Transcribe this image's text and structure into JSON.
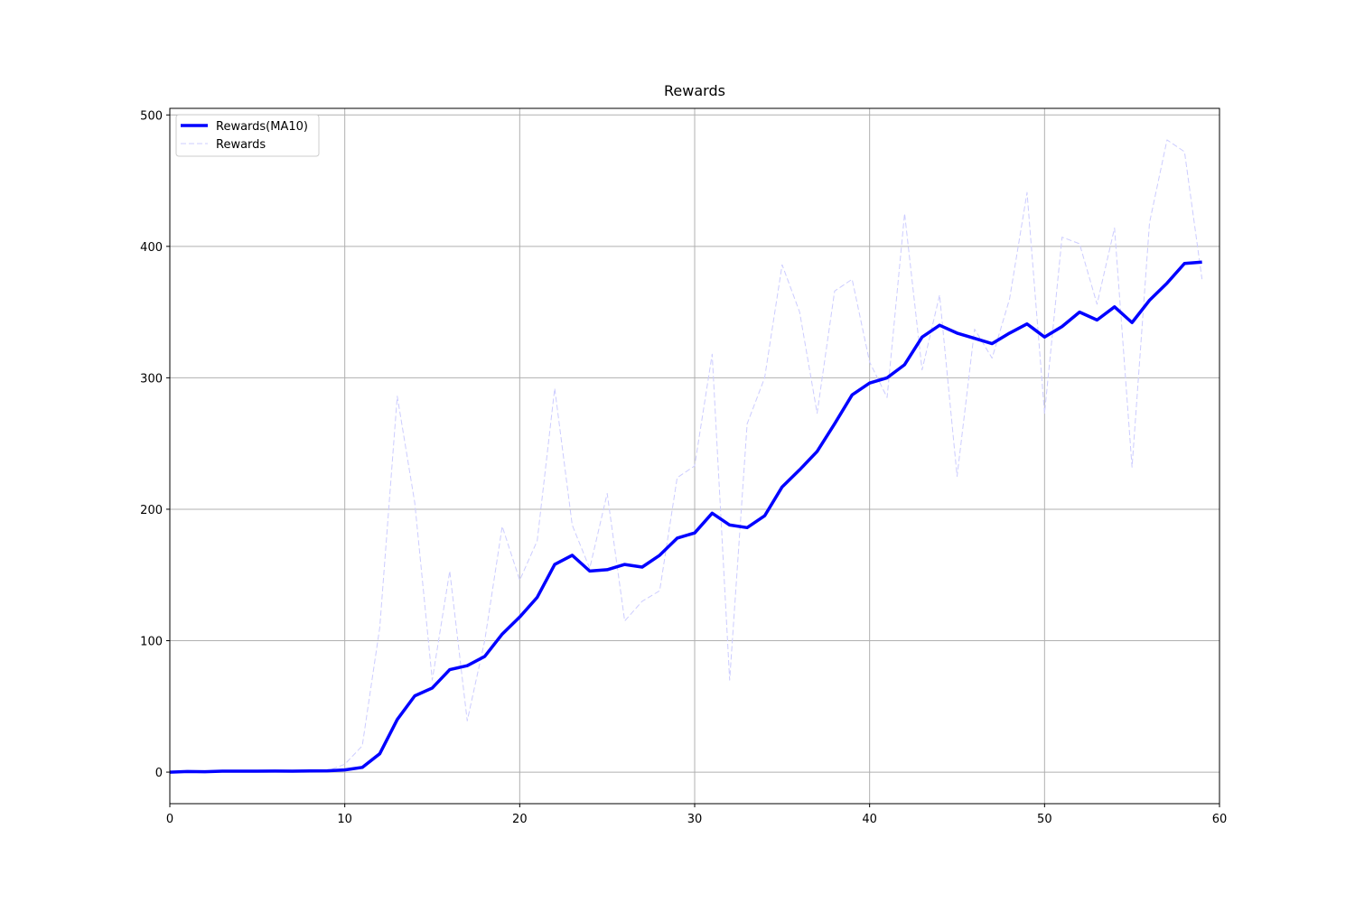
{
  "chart_data": {
    "type": "line",
    "title": "Rewards",
    "x": [
      0,
      1,
      2,
      3,
      4,
      5,
      6,
      7,
      8,
      9,
      10,
      11,
      12,
      13,
      14,
      15,
      16,
      17,
      18,
      19,
      20,
      21,
      22,
      23,
      24,
      25,
      26,
      27,
      28,
      29,
      30,
      31,
      32,
      33,
      34,
      35,
      36,
      37,
      38,
      39,
      40,
      41,
      42,
      43,
      44,
      45,
      46,
      47,
      48,
      49,
      50,
      51,
      52,
      53,
      54,
      55,
      56,
      57,
      58,
      59
    ],
    "series": [
      {
        "name": "Rewards(MA10)",
        "color": "#0000ff",
        "style": "solid",
        "width": 3.5,
        "values": [
          0,
          0.5,
          0.3,
          0.7,
          0.7,
          0.7,
          0.8,
          0.7,
          0.9,
          1,
          1.7,
          3.6,
          14,
          40,
          58,
          64,
          78,
          81,
          88,
          105,
          118,
          133,
          158,
          165,
          153,
          154,
          158,
          156,
          165,
          178,
          182,
          197,
          188,
          186,
          195,
          217,
          230,
          244,
          265,
          287,
          296,
          300,
          310,
          331,
          340,
          334,
          330,
          326,
          334,
          341,
          331,
          339,
          350,
          344,
          354,
          342,
          359,
          372,
          387,
          388
        ]
      },
      {
        "name": "Rewards",
        "color": "#ccccff",
        "style": "dashed",
        "width": 1,
        "values": [
          0,
          1,
          0,
          1,
          1,
          1,
          1,
          0,
          1,
          1,
          6,
          20,
          110,
          286,
          205,
          70,
          153,
          39,
          100,
          187,
          146,
          176,
          292,
          188,
          155,
          212,
          115,
          130,
          138,
          224,
          233,
          318,
          70,
          265,
          300,
          386,
          350,
          273,
          366,
          375,
          312,
          285,
          425,
          306,
          363,
          225,
          337,
          315,
          360,
          441,
          273,
          407,
          402,
          356,
          414,
          232,
          418,
          481,
          472,
          375
        ]
      }
    ],
    "xlim": [
      0,
      60
    ],
    "xticks": [
      0,
      10,
      20,
      30,
      40,
      50,
      60
    ],
    "ylim": [
      -24,
      505
    ],
    "yticks": [
      0,
      100,
      200,
      300,
      400,
      500
    ],
    "grid": true,
    "legend": "upper-left"
  }
}
